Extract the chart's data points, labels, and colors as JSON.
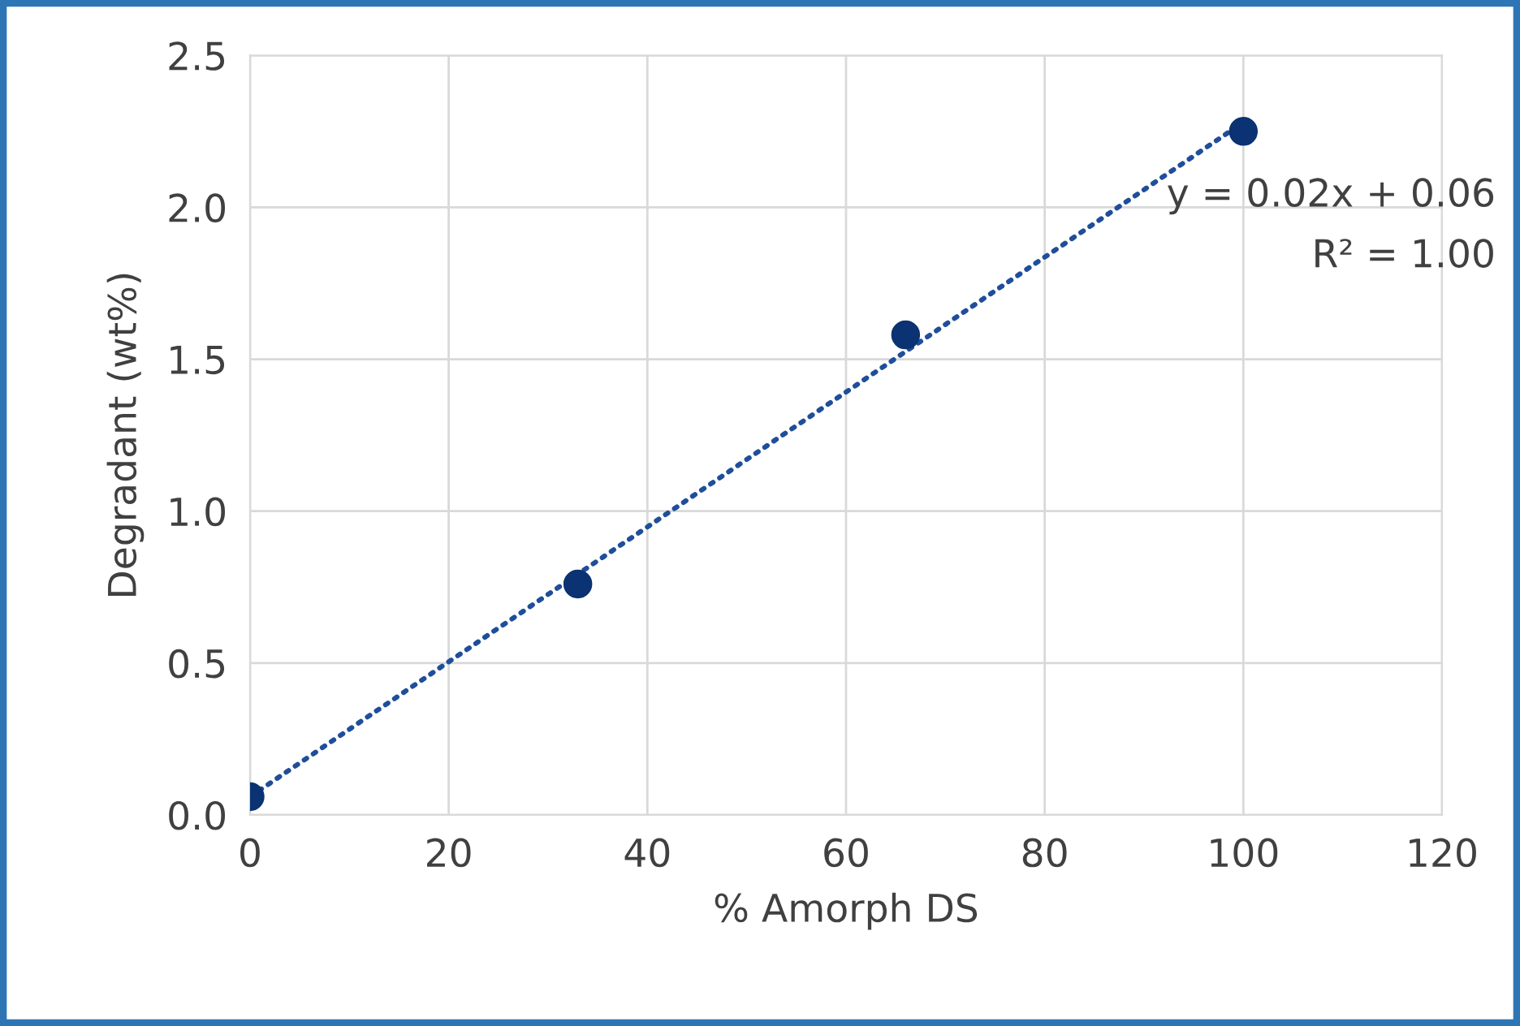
{
  "chart_data": {
    "type": "scatter",
    "xlabel": "% Amorph DS",
    "ylabel": "Degradant (wt%)",
    "xlim": [
      0,
      120
    ],
    "xticks": [
      0,
      20,
      40,
      60,
      80,
      100,
      120
    ],
    "ylim": [
      0.0,
      2.5
    ],
    "yticks": [
      {
        "value": 0,
        "label": "0.0"
      },
      {
        "value": 0.5,
        "label": "0.5"
      },
      {
        "value": 1,
        "label": "1.0"
      },
      {
        "value": 1.5,
        "label": "1.5"
      },
      {
        "value": 2,
        "label": "2.0"
      },
      {
        "value": 2.5,
        "label": "2.5"
      }
    ],
    "grid": true,
    "marker": "circle",
    "series": [
      {
        "color": "#0b3272",
        "x": [
          0,
          33,
          66,
          100
        ],
        "values": [
          0.06,
          0.76,
          1.58,
          2.25
        ]
      },
      {
        "type": "line",
        "color": "#1f4e9a",
        "line_style": "dotted",
        "marker": "none",
        "x": [
          0,
          100
        ],
        "values": [
          0.06,
          2.28
        ]
      }
    ],
    "annotations": [
      "y = 0.02x + 0.06",
      "R² = 1.00"
    ]
  }
}
